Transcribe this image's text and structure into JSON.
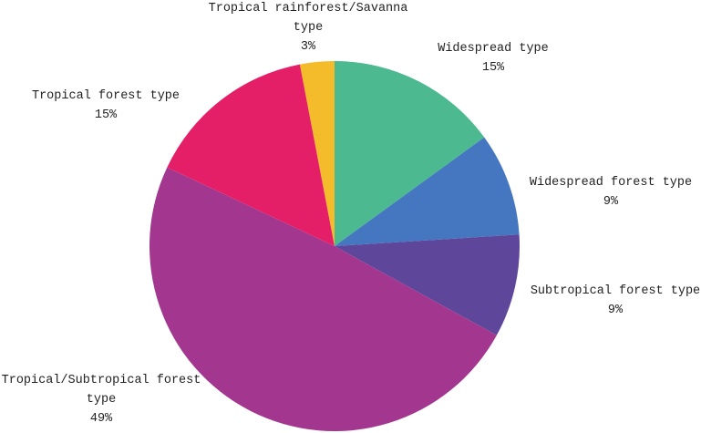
{
  "chart_data": {
    "type": "pie",
    "categories": [
      "Widespread type",
      "Widespread forest type",
      "Subtropical forest type",
      "Tropical/Subtropical forest type",
      "Tropical forest type",
      "Tropical rainforest/Savanna type"
    ],
    "values": [
      15,
      9,
      9,
      49,
      15,
      3
    ],
    "value_labels": [
      "15%",
      "9%",
      "9%",
      "49%",
      "15%",
      "3%"
    ],
    "colors": [
      "#4cb990",
      "#4577c0",
      "#5e479b",
      "#a3378f",
      "#e51f67",
      "#f4bb2a"
    ]
  }
}
